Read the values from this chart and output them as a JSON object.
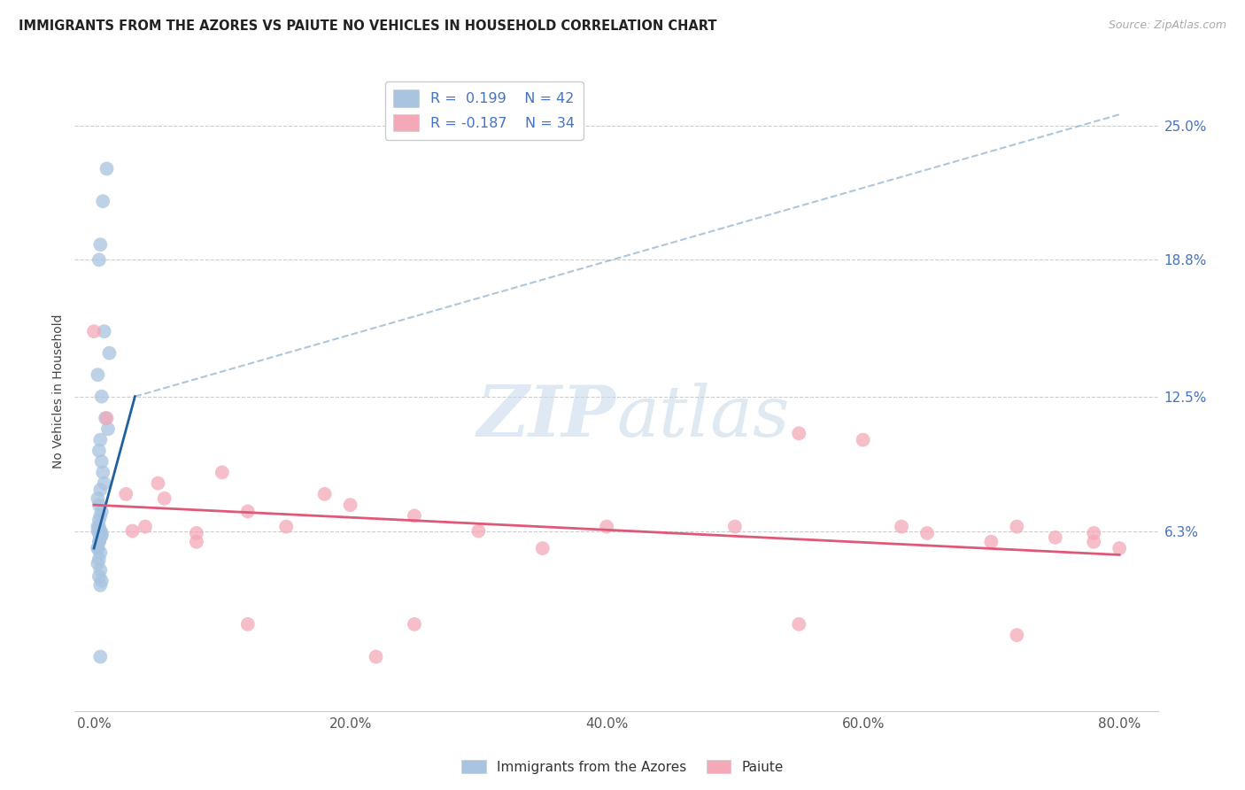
{
  "title": "IMMIGRANTS FROM THE AZORES VS PAIUTE NO VEHICLES IN HOUSEHOLD CORRELATION CHART",
  "source": "Source: ZipAtlas.com",
  "xlabel_ticks": [
    "0.0%",
    "20.0%",
    "40.0%",
    "60.0%",
    "80.0%"
  ],
  "xlabel_tick_vals": [
    0.0,
    20.0,
    40.0,
    60.0,
    80.0
  ],
  "ylabel_ticks": [
    "6.3%",
    "12.5%",
    "18.8%",
    "25.0%"
  ],
  "ylabel_tick_vals": [
    6.3,
    12.5,
    18.8,
    25.0
  ],
  "xlim": [
    -1.5,
    83
  ],
  "ylim": [
    -2.0,
    27.5
  ],
  "blue_R": 0.199,
  "blue_N": 42,
  "pink_R": -0.187,
  "pink_N": 34,
  "blue_color": "#a8c4e0",
  "pink_color": "#f4a8b8",
  "blue_line_color": "#2060a0",
  "pink_line_color": "#e05878",
  "legend_blue_label": "Immigrants from the Azores",
  "legend_pink_label": "Paiute",
  "blue_x": [
    1.0,
    0.7,
    0.5,
    0.4,
    0.8,
    1.2,
    0.3,
    0.6,
    0.9,
    1.1,
    0.5,
    0.4,
    0.6,
    0.7,
    0.8,
    0.5,
    0.3,
    0.4,
    0.6,
    0.5,
    0.4,
    0.3,
    0.5,
    0.4,
    0.6,
    0.5,
    0.4,
    0.3,
    0.5,
    0.4,
    0.3,
    0.5,
    0.4,
    0.6,
    0.5,
    0.4,
    0.3,
    0.6,
    0.5,
    0.4,
    0.3,
    0.5
  ],
  "blue_y": [
    23.0,
    21.5,
    19.5,
    18.8,
    15.5,
    14.5,
    13.5,
    12.5,
    11.5,
    11.0,
    10.5,
    10.0,
    9.5,
    9.0,
    8.5,
    8.2,
    7.8,
    7.5,
    7.2,
    7.0,
    6.8,
    6.5,
    6.3,
    6.2,
    6.1,
    6.0,
    5.8,
    5.5,
    5.3,
    5.0,
    4.8,
    4.5,
    4.2,
    4.0,
    3.8,
    6.5,
    6.3,
    6.2,
    6.0,
    5.8,
    5.5,
    0.5
  ],
  "pink_x": [
    0.0,
    1.0,
    2.5,
    4.0,
    5.5,
    8.0,
    10.0,
    12.0,
    15.0,
    18.0,
    22.0,
    25.0,
    30.0,
    35.0,
    40.0,
    50.0,
    55.0,
    60.0,
    63.0,
    65.0,
    70.0,
    72.0,
    75.0,
    78.0,
    80.0,
    3.0,
    5.0,
    8.0,
    12.0,
    20.0,
    25.0,
    55.0,
    72.0,
    78.0
  ],
  "pink_y": [
    15.5,
    11.5,
    8.0,
    6.5,
    7.8,
    6.2,
    9.0,
    7.2,
    6.5,
    8.0,
    0.5,
    7.0,
    6.3,
    5.5,
    6.5,
    6.5,
    10.8,
    10.5,
    6.5,
    6.2,
    5.8,
    1.5,
    6.0,
    5.8,
    5.5,
    6.3,
    8.5,
    5.8,
    2.0,
    7.5,
    2.0,
    2.0,
    6.5,
    6.2
  ],
  "blue_trendline_x0": 0.0,
  "blue_trendline_y0": 5.5,
  "blue_trendline_x1": 3.2,
  "blue_trendline_y1": 12.5,
  "blue_dash_x0": 3.2,
  "blue_dash_y0": 12.5,
  "blue_dash_x1": 80.0,
  "blue_dash_y1": 25.5,
  "pink_trendline_x0": 0.0,
  "pink_trendline_y0": 7.5,
  "pink_trendline_x1": 80.0,
  "pink_trendline_y1": 5.2
}
